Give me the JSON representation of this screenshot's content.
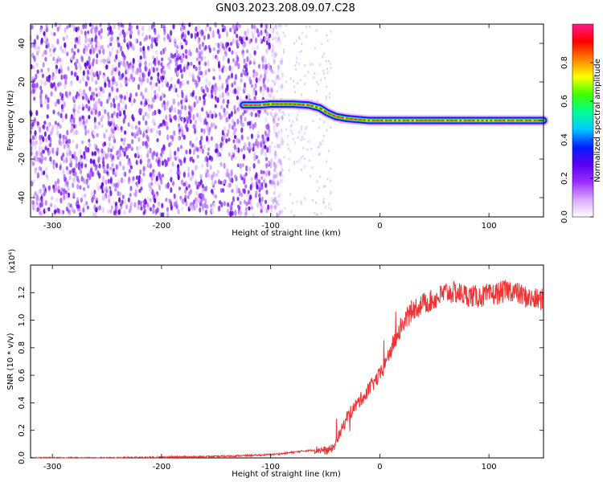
{
  "title": "GN03.2023.208.09.07.C28",
  "chart_data": [
    {
      "type": "heatmap",
      "xlabel": "Height of straight line (km)",
      "ylabel": "Frequency (Hz)",
      "xlim": [
        -320,
        150
      ],
      "ylim": [
        -50,
        50
      ],
      "x_ticks": [
        -300,
        -200,
        -100,
        0,
        100
      ],
      "y_ticks": [
        40,
        20,
        0,
        -20,
        -40
      ],
      "colorbar": {
        "label": "Normalized spectral amplitude",
        "range": [
          0.0,
          1.0
        ],
        "ticks": [
          "0.0",
          "0.2",
          "0.4",
          "0.6",
          "0.8"
        ],
        "colors": [
          "#ffffff",
          "#d8a8ff",
          "#9a2cff",
          "#5a00f0",
          "#0020ff",
          "#00c8ff",
          "#00ff90",
          "#40ff00",
          "#ffff00",
          "#ff8000",
          "#ff0000",
          "#ff1a8a"
        ]
      },
      "ridge": {
        "x": [
          -125,
          -110,
          -100,
          -80,
          -65,
          -55,
          -48,
          -40,
          -30,
          -20,
          -10,
          0,
          50,
          100,
          150
        ],
        "y": [
          8,
          8,
          8.5,
          8.5,
          8,
          6.5,
          4,
          2,
          1,
          0.5,
          0,
          0,
          0,
          0,
          0
        ]
      },
      "noise_region": {
        "x_range": [
          -320,
          -100
        ],
        "y_range": [
          -50,
          50
        ]
      }
    },
    {
      "type": "line",
      "xlabel": "Height of straight line (km)",
      "ylabel": "SNR (10 * v/v)",
      "y_multiplier": "(x10⁴)",
      "xlim": [
        -320,
        150
      ],
      "ylim": [
        0,
        1.4
      ],
      "x_ticks": [
        -300,
        -200,
        -100,
        0,
        100
      ],
      "y_ticks": [
        "0.0",
        "0.2",
        "0.4",
        "0.6",
        "0.8",
        "1.0",
        "1.2"
      ],
      "color": "#ee3333",
      "x": [
        -320,
        -250,
        -200,
        -150,
        -110,
        -90,
        -70,
        -55,
        -48,
        -42,
        -38,
        -34,
        -30,
        -25,
        -20,
        -15,
        -10,
        -5,
        0,
        5,
        10,
        15,
        20,
        25,
        30,
        40,
        50,
        60,
        70,
        80,
        90,
        100,
        110,
        120,
        130,
        140,
        150
      ],
      "y": [
        0.0,
        0.0,
        0.005,
        0.01,
        0.02,
        0.03,
        0.05,
        0.06,
        0.05,
        0.08,
        0.15,
        0.22,
        0.3,
        0.35,
        0.4,
        0.45,
        0.5,
        0.55,
        0.6,
        0.68,
        0.78,
        0.88,
        0.96,
        1.02,
        1.08,
        1.12,
        1.15,
        1.2,
        1.2,
        1.18,
        1.17,
        1.18,
        1.2,
        1.22,
        1.18,
        1.15,
        1.15
      ]
    }
  ]
}
